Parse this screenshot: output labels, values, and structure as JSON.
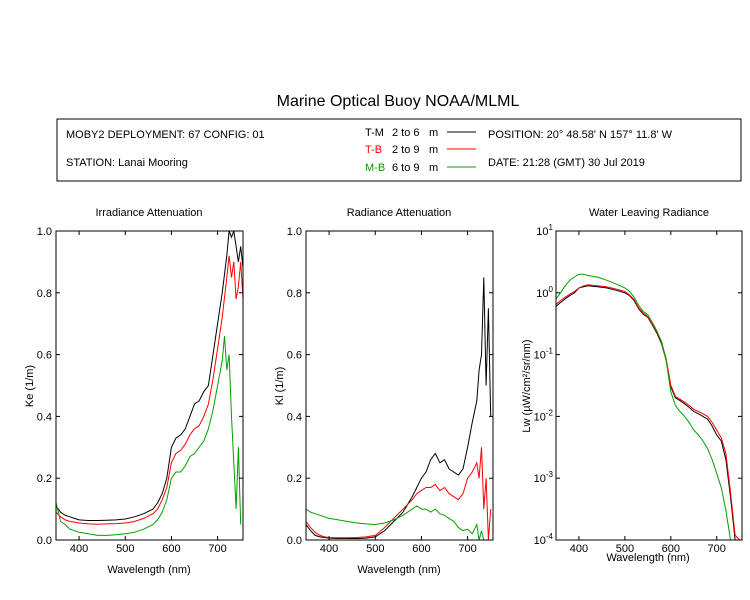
{
  "title": "Marine Optical Buoy NOAA/MLML",
  "info": {
    "deployment": "MOBY2 DEPLOYMENT: 67 CONFIG: 01",
    "station": "STATION: Lanai Mooring",
    "position": "POSITION: 20° 48.58' N   157° 11.8' W",
    "date": "DATE: 21:28 (GMT) 30 Jul 2019",
    "legend": [
      {
        "code": "T-M",
        "range": "2 to 6",
        "unit": "m",
        "color": "#000000"
      },
      {
        "code": "T-B",
        "range": "2 to 9",
        "unit": "m",
        "color": "#ff0000"
      },
      {
        "code": "M-B",
        "range": "6 to 9",
        "unit": "m",
        "color": "#00a000"
      }
    ]
  },
  "chart_data": [
    {
      "type": "line",
      "title": "Irradiance Attenuation",
      "xlabel": "Wavelength (nm)",
      "ylabel": "Ke  (1/m)",
      "xlim": [
        350,
        755
      ],
      "ylim": [
        0,
        1
      ],
      "xticks": [
        400,
        500,
        600,
        700
      ],
      "yticks": [
        "0.0",
        "0.2",
        "0.4",
        "0.6",
        "0.8",
        "1.0"
      ],
      "series": [
        {
          "code": "T-M",
          "color": "#000000",
          "x": [
            350,
            360,
            370,
            380,
            390,
            400,
            420,
            440,
            460,
            480,
            500,
            520,
            540,
            560,
            570,
            580,
            590,
            600,
            610,
            620,
            630,
            640,
            650,
            660,
            670,
            680,
            690,
            700,
            710,
            720,
            725,
            730,
            735,
            740,
            745,
            750,
            755
          ],
          "y": [
            0.11,
            0.09,
            0.08,
            0.075,
            0.07,
            0.065,
            0.063,
            0.063,
            0.064,
            0.065,
            0.068,
            0.075,
            0.085,
            0.1,
            0.12,
            0.15,
            0.2,
            0.3,
            0.33,
            0.34,
            0.36,
            0.4,
            0.44,
            0.45,
            0.48,
            0.5,
            0.6,
            0.7,
            0.8,
            0.92,
            1.0,
            0.98,
            1.0,
            0.95,
            0.9,
            0.95,
            0.88
          ]
        },
        {
          "code": "T-B",
          "color": "#ff0000",
          "x": [
            350,
            360,
            370,
            380,
            390,
            400,
            420,
            440,
            460,
            480,
            500,
            520,
            540,
            560,
            570,
            580,
            590,
            600,
            610,
            620,
            630,
            640,
            650,
            660,
            670,
            680,
            690,
            700,
            710,
            720,
            725,
            730,
            735,
            740,
            745,
            750,
            755
          ],
          "y": [
            0.09,
            0.075,
            0.065,
            0.06,
            0.058,
            0.055,
            0.052,
            0.051,
            0.052,
            0.053,
            0.055,
            0.06,
            0.07,
            0.085,
            0.1,
            0.13,
            0.17,
            0.25,
            0.28,
            0.29,
            0.31,
            0.34,
            0.36,
            0.37,
            0.4,
            0.44,
            0.52,
            0.62,
            0.72,
            0.85,
            0.92,
            0.85,
            0.9,
            0.78,
            0.82,
            0.9,
            0.78
          ]
        },
        {
          "code": "M-B",
          "color": "#00a000",
          "x": [
            350,
            360,
            370,
            380,
            390,
            400,
            420,
            440,
            460,
            480,
            500,
            520,
            540,
            560,
            570,
            580,
            590,
            600,
            610,
            620,
            630,
            640,
            650,
            660,
            670,
            680,
            690,
            700,
            710,
            715,
            720,
            725,
            730,
            735,
            740,
            745,
            750
          ],
          "y": [
            0.12,
            0.06,
            0.05,
            0.035,
            0.03,
            0.025,
            0.02,
            0.015,
            0.015,
            0.017,
            0.02,
            0.025,
            0.035,
            0.05,
            0.065,
            0.09,
            0.13,
            0.2,
            0.22,
            0.22,
            0.24,
            0.27,
            0.28,
            0.3,
            0.32,
            0.36,
            0.42,
            0.5,
            0.58,
            0.66,
            0.55,
            0.6,
            0.4,
            0.25,
            0.1,
            0.3,
            0.05
          ]
        }
      ]
    },
    {
      "type": "line",
      "title": "Radiance Attenuation",
      "xlabel": "Wavelength (nm)",
      "ylabel": "Kl  (1/m)",
      "xlim": [
        350,
        755
      ],
      "ylim": [
        0,
        1
      ],
      "xticks": [
        400,
        500,
        600,
        700
      ],
      "yticks": [
        "0.0",
        "0.2",
        "0.4",
        "0.6",
        "0.8",
        "1.0"
      ],
      "series": [
        {
          "code": "T-M",
          "color": "#000000",
          "x": [
            350,
            360,
            370,
            380,
            390,
            400,
            420,
            440,
            460,
            480,
            500,
            520,
            540,
            560,
            580,
            590,
            600,
            610,
            620,
            630,
            640,
            650,
            660,
            670,
            680,
            690,
            700,
            710,
            720,
            725,
            730,
            735,
            740,
            745,
            750
          ],
          "y": [
            0.05,
            0.03,
            0.015,
            0.01,
            0.008,
            0.006,
            0.005,
            0.005,
            0.005,
            0.006,
            0.01,
            0.03,
            0.06,
            0.09,
            0.14,
            0.17,
            0.2,
            0.22,
            0.26,
            0.28,
            0.25,
            0.26,
            0.23,
            0.22,
            0.21,
            0.23,
            0.3,
            0.38,
            0.45,
            0.55,
            0.6,
            0.85,
            0.5,
            0.75,
            0.4
          ]
        },
        {
          "code": "T-B",
          "color": "#ff0000",
          "x": [
            350,
            360,
            370,
            380,
            390,
            400,
            420,
            440,
            460,
            480,
            500,
            520,
            540,
            560,
            580,
            590,
            600,
            610,
            620,
            630,
            640,
            650,
            660,
            670,
            680,
            690,
            700,
            710,
            720,
            725,
            730,
            735,
            740,
            745,
            750
          ],
          "y": [
            0.06,
            0.04,
            0.025,
            0.015,
            0.01,
            0.008,
            0.007,
            0.007,
            0.008,
            0.01,
            0.015,
            0.04,
            0.07,
            0.1,
            0.13,
            0.15,
            0.16,
            0.17,
            0.17,
            0.18,
            0.16,
            0.17,
            0.15,
            0.14,
            0.13,
            0.15,
            0.2,
            0.22,
            0.25,
            0.2,
            0.3,
            0.1,
            0.2,
            0.0,
            0.1
          ]
        },
        {
          "code": "M-B",
          "color": "#00a000",
          "x": [
            350,
            360,
            370,
            380,
            390,
            400,
            420,
            440,
            460,
            480,
            500,
            520,
            540,
            560,
            580,
            590,
            600,
            610,
            620,
            630,
            640,
            650,
            660,
            670,
            680,
            690,
            700,
            710,
            720,
            725,
            730,
            735,
            740
          ],
          "y": [
            0.1,
            0.09,
            0.085,
            0.08,
            0.075,
            0.07,
            0.065,
            0.06,
            0.055,
            0.052,
            0.05,
            0.055,
            0.065,
            0.08,
            0.1,
            0.11,
            0.1,
            0.1,
            0.09,
            0.1,
            0.085,
            0.08,
            0.07,
            0.06,
            0.04,
            0.03,
            0.035,
            0.02,
            0.05,
            0.0,
            0.03,
            0.0,
            0.0
          ]
        }
      ]
    },
    {
      "type": "line",
      "title": "Water Leaving Radiance",
      "xlabel": "Wavelength (nm)",
      "ylabel": "Lw  (µW/cm²/sr/nm)",
      "yscale": "log",
      "xlim": [
        350,
        755
      ],
      "ylim": [
        0.0001,
        10
      ],
      "xticks": [
        400,
        500,
        600,
        700
      ],
      "yticks": [
        "10^-4",
        "10^-3",
        "10^-2",
        "10^-1",
        "10^0",
        "10^1"
      ],
      "series": [
        {
          "code": "T-M",
          "color": "#000000",
          "x": [
            350,
            360,
            370,
            380,
            390,
            400,
            410,
            420,
            440,
            460,
            480,
            500,
            510,
            520,
            530,
            540,
            550,
            560,
            570,
            580,
            590,
            600,
            610,
            620,
            630,
            640,
            650,
            660,
            670,
            680,
            690,
            700,
            710,
            720,
            730,
            740,
            750
          ],
          "y": [
            0.6,
            0.7,
            0.8,
            0.9,
            1.0,
            1.2,
            1.25,
            1.3,
            1.25,
            1.2,
            1.1,
            1.0,
            0.9,
            0.75,
            0.55,
            0.45,
            0.4,
            0.3,
            0.22,
            0.15,
            0.08,
            0.03,
            0.02,
            0.018,
            0.016,
            0.014,
            0.012,
            0.011,
            0.01,
            0.009,
            0.007,
            0.005,
            0.004,
            0.002,
            0.0005,
            0.0001,
            0.0001
          ]
        },
        {
          "code": "T-B",
          "color": "#ff0000",
          "x": [
            350,
            360,
            370,
            380,
            390,
            400,
            410,
            420,
            440,
            460,
            480,
            500,
            510,
            520,
            530,
            540,
            550,
            560,
            570,
            580,
            590,
            600,
            610,
            620,
            630,
            640,
            650,
            660,
            670,
            680,
            690,
            700,
            710,
            720,
            730,
            740,
            750
          ],
          "y": [
            0.65,
            0.75,
            0.85,
            0.95,
            1.05,
            1.2,
            1.3,
            1.35,
            1.3,
            1.25,
            1.15,
            1.05,
            0.92,
            0.78,
            0.57,
            0.47,
            0.41,
            0.31,
            0.23,
            0.16,
            0.085,
            0.032,
            0.021,
            0.019,
            0.017,
            0.015,
            0.013,
            0.012,
            0.011,
            0.01,
            0.008,
            0.006,
            0.0045,
            0.0025,
            0.0006,
            0.00012,
            0.0001
          ]
        },
        {
          "code": "M-B",
          "color": "#00a000",
          "x": [
            350,
            360,
            370,
            380,
            390,
            400,
            410,
            420,
            440,
            460,
            480,
            500,
            510,
            520,
            530,
            540,
            550,
            560,
            570,
            580,
            590,
            600,
            610,
            620,
            630,
            640,
            650,
            660,
            670,
            680,
            690,
            700,
            710,
            720,
            730,
            740
          ],
          "y": [
            0.8,
            1.0,
            1.3,
            1.6,
            1.8,
            2.0,
            2.0,
            1.9,
            1.8,
            1.6,
            1.4,
            1.2,
            1.05,
            0.85,
            0.62,
            0.5,
            0.44,
            0.33,
            0.24,
            0.16,
            0.08,
            0.025,
            0.015,
            0.012,
            0.01,
            0.008,
            0.006,
            0.005,
            0.004,
            0.003,
            0.002,
            0.0012,
            0.0007,
            0.0003,
            0.0001,
            0.0001
          ]
        }
      ]
    }
  ]
}
